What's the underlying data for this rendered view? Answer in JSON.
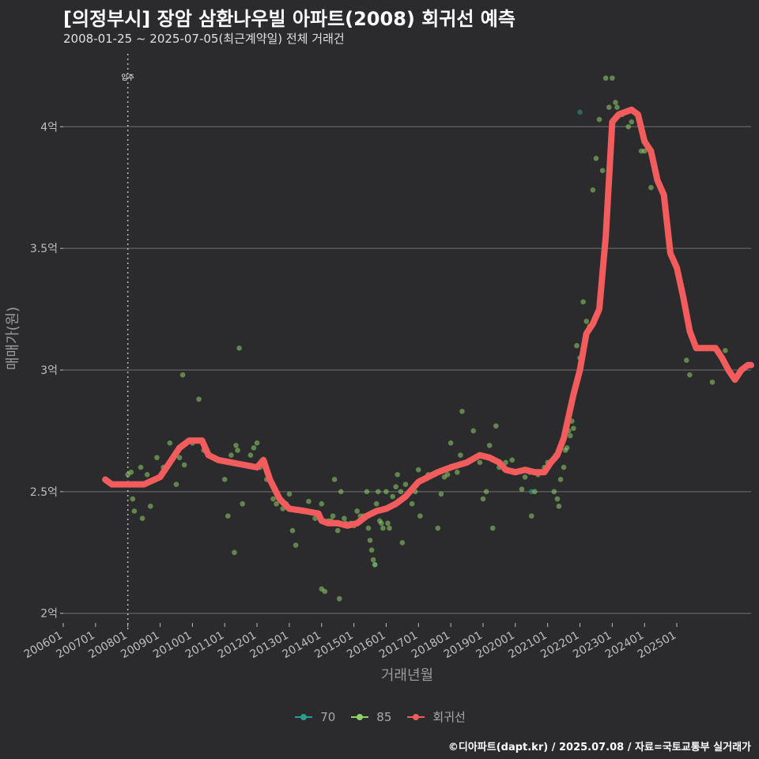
{
  "header": {
    "title": "[의정부시] 장암 삼환나우빌 아파트(2008) 회귀선 예측",
    "subtitle": "2008-01-25 ~ 2025-07-05(최근계약일) 전체 거래건"
  },
  "footer": {
    "credit": "©디아파트(dapt.kr) / 2025.07.08 / 자료=국토교통부 실거래가"
  },
  "colors": {
    "s70": "#2a9d8f",
    "s85": "#8fd16a",
    "regression": "#f25c5c"
  },
  "chart_data": {
    "type": "scatter",
    "title": "[의정부시] 장암 삼환나우빌 아파트(2008) 회귀선 예측",
    "xlabel": "거래년월",
    "ylabel": "매매가(원)",
    "xlim": [
      2006.0,
      2027.3
    ],
    "ylim": [
      1.96,
      4.3
    ],
    "y_ticks": [
      {
        "value": 2.0,
        "label": "2억"
      },
      {
        "value": 2.5,
        "label": "2.5억"
      },
      {
        "value": 3.0,
        "label": "3억"
      },
      {
        "value": 3.5,
        "label": "3.5억"
      },
      {
        "value": 4.0,
        "label": "4억"
      }
    ],
    "x_ticks": [
      "200601",
      "200701",
      "200801",
      "200901",
      "201001",
      "201101",
      "201201",
      "201301",
      "201401",
      "201501",
      "201601",
      "201701",
      "201801",
      "201901",
      "202001",
      "202101",
      "202201",
      "202301",
      "202401",
      "202501"
    ],
    "annotation": {
      "label": "입주",
      "x": 2008.0
    },
    "legend": [
      "70",
      "85",
      "회귀선"
    ],
    "series": [
      {
        "name": "70",
        "points": [
          [
            2022.0,
            4.06
          ],
          [
            2015.65,
            2.2
          ],
          [
            2020.5,
            2.5
          ]
        ]
      },
      {
        "name": "85",
        "points": [
          [
            2008.0,
            2.57
          ],
          [
            2008.1,
            2.58
          ],
          [
            2008.15,
            2.47
          ],
          [
            2008.2,
            2.42
          ],
          [
            2008.4,
            2.6
          ],
          [
            2008.45,
            2.39
          ],
          [
            2008.6,
            2.57
          ],
          [
            2008.7,
            2.44
          ],
          [
            2008.8,
            2.55
          ],
          [
            2008.9,
            2.64
          ],
          [
            2009.1,
            2.6
          ],
          [
            2009.3,
            2.7
          ],
          [
            2009.5,
            2.53
          ],
          [
            2009.6,
            2.64
          ],
          [
            2009.7,
            2.98
          ],
          [
            2009.75,
            2.61
          ],
          [
            2010.0,
            2.7
          ],
          [
            2010.2,
            2.88
          ],
          [
            2010.35,
            2.67
          ],
          [
            2010.5,
            2.65
          ],
          [
            2010.7,
            2.64
          ],
          [
            2010.8,
            2.63
          ],
          [
            2011.0,
            2.55
          ],
          [
            2011.1,
            2.4
          ],
          [
            2011.2,
            2.65
          ],
          [
            2011.3,
            2.25
          ],
          [
            2011.35,
            2.69
          ],
          [
            2011.4,
            2.67
          ],
          [
            2011.45,
            3.09
          ],
          [
            2011.55,
            2.45
          ],
          [
            2011.8,
            2.65
          ],
          [
            2011.9,
            2.68
          ],
          [
            2012.0,
            2.7
          ],
          [
            2012.1,
            2.6
          ],
          [
            2012.3,
            2.55
          ],
          [
            2012.5,
            2.47
          ],
          [
            2012.6,
            2.45
          ],
          [
            2012.8,
            2.43
          ],
          [
            2012.9,
            2.45
          ],
          [
            2013.0,
            2.49
          ],
          [
            2013.1,
            2.34
          ],
          [
            2013.2,
            2.28
          ],
          [
            2013.4,
            2.42
          ],
          [
            2013.6,
            2.46
          ],
          [
            2013.8,
            2.39
          ],
          [
            2014.0,
            2.45
          ],
          [
            2014.2,
            2.38
          ],
          [
            2014.3,
            2.38
          ],
          [
            2014.35,
            2.4
          ],
          [
            2014.4,
            2.55
          ],
          [
            2014.5,
            2.34
          ],
          [
            2014.55,
            2.06
          ],
          [
            2014.6,
            2.5
          ],
          [
            2014.7,
            2.39
          ],
          [
            2014.75,
            2.37
          ],
          [
            2014.9,
            2.37
          ],
          [
            2015.0,
            2.36
          ],
          [
            2015.1,
            2.42
          ],
          [
            2015.2,
            2.4
          ],
          [
            2015.3,
            2.4
          ],
          [
            2015.4,
            2.5
          ],
          [
            2015.45,
            2.35
          ],
          [
            2015.5,
            2.3
          ],
          [
            2015.55,
            2.26
          ],
          [
            2015.6,
            2.22
          ],
          [
            2015.65,
            2.2
          ],
          [
            2015.7,
            2.45
          ],
          [
            2015.75,
            2.5
          ],
          [
            2015.8,
            2.38
          ],
          [
            2015.85,
            2.37
          ],
          [
            2015.9,
            2.35
          ],
          [
            2016.0,
            2.5
          ],
          [
            2016.05,
            2.37
          ],
          [
            2016.1,
            2.35
          ],
          [
            2016.2,
            2.48
          ],
          [
            2016.3,
            2.52
          ],
          [
            2016.35,
            2.57
          ],
          [
            2016.45,
            2.5
          ],
          [
            2016.5,
            2.29
          ],
          [
            2016.6,
            2.53
          ],
          [
            2016.8,
            2.45
          ],
          [
            2016.9,
            2.5
          ],
          [
            2017.0,
            2.59
          ],
          [
            2017.05,
            2.4
          ],
          [
            2017.3,
            2.57
          ],
          [
            2017.5,
            2.57
          ],
          [
            2017.6,
            2.35
          ],
          [
            2017.7,
            2.49
          ],
          [
            2017.8,
            2.56
          ],
          [
            2017.9,
            2.57
          ],
          [
            2018.0,
            2.7
          ],
          [
            2018.2,
            2.58
          ],
          [
            2018.3,
            2.65
          ],
          [
            2018.35,
            2.83
          ],
          [
            2018.7,
            2.75
          ],
          [
            2018.9,
            2.62
          ],
          [
            2019.0,
            2.47
          ],
          [
            2019.1,
            2.5
          ],
          [
            2019.2,
            2.69
          ],
          [
            2019.3,
            2.35
          ],
          [
            2019.4,
            2.77
          ],
          [
            2019.5,
            2.6
          ],
          [
            2019.7,
            2.62
          ],
          [
            2019.9,
            2.63
          ],
          [
            2020.2,
            2.51
          ],
          [
            2020.3,
            2.56
          ],
          [
            2020.45,
            2.58
          ],
          [
            2020.5,
            2.4
          ],
          [
            2020.6,
            2.5
          ],
          [
            2020.7,
            2.57
          ],
          [
            2020.9,
            2.6
          ],
          [
            2021.0,
            2.62
          ],
          [
            2021.2,
            2.5
          ],
          [
            2021.25,
            2.65
          ],
          [
            2021.3,
            2.47
          ],
          [
            2021.35,
            2.44
          ],
          [
            2021.4,
            2.55
          ],
          [
            2021.5,
            2.6
          ],
          [
            2021.55,
            2.67
          ],
          [
            2021.6,
            2.68
          ],
          [
            2021.65,
            2.75
          ],
          [
            2021.7,
            2.73
          ],
          [
            2021.75,
            2.79
          ],
          [
            2021.8,
            2.76
          ],
          [
            2021.9,
            3.1
          ],
          [
            2022.0,
            3.05
          ],
          [
            2022.1,
            3.28
          ],
          [
            2022.2,
            3.2
          ],
          [
            2022.3,
            3.18
          ],
          [
            2022.4,
            3.74
          ],
          [
            2022.5,
            3.87
          ],
          [
            2022.6,
            4.03
          ],
          [
            2022.7,
            3.82
          ],
          [
            2022.8,
            4.2
          ],
          [
            2022.9,
            4.08
          ],
          [
            2023.0,
            4.2
          ],
          [
            2023.1,
            4.1
          ],
          [
            2023.15,
            4.08
          ],
          [
            2023.3,
            4.05
          ],
          [
            2023.5,
            4.0
          ],
          [
            2023.6,
            4.02
          ],
          [
            2023.9,
            3.9
          ],
          [
            2024.0,
            3.9
          ],
          [
            2024.2,
            3.75
          ],
          [
            2025.3,
            3.04
          ],
          [
            2025.4,
            2.98
          ],
          [
            2026.1,
            2.95
          ],
          [
            2026.5,
            3.08
          ],
          [
            2014.0,
            2.1
          ],
          [
            2014.1,
            2.09
          ]
        ]
      },
      {
        "name": "회귀선",
        "points": [
          [
            2007.3,
            2.55
          ],
          [
            2007.5,
            2.53
          ],
          [
            2008.0,
            2.53
          ],
          [
            2008.5,
            2.53
          ],
          [
            2009.0,
            2.56
          ],
          [
            2009.3,
            2.62
          ],
          [
            2009.6,
            2.68
          ],
          [
            2009.9,
            2.71
          ],
          [
            2010.3,
            2.71
          ],
          [
            2010.5,
            2.65
          ],
          [
            2010.8,
            2.63
          ],
          [
            2011.2,
            2.62
          ],
          [
            2011.6,
            2.61
          ],
          [
            2012.0,
            2.6
          ],
          [
            2012.2,
            2.63
          ],
          [
            2012.4,
            2.55
          ],
          [
            2012.7,
            2.47
          ],
          [
            2013.0,
            2.43
          ],
          [
            2013.5,
            2.42
          ],
          [
            2013.9,
            2.41
          ],
          [
            2014.0,
            2.38
          ],
          [
            2014.2,
            2.37
          ],
          [
            2014.5,
            2.37
          ],
          [
            2014.8,
            2.36
          ],
          [
            2015.1,
            2.37
          ],
          [
            2015.4,
            2.4
          ],
          [
            2015.7,
            2.42
          ],
          [
            2016.0,
            2.43
          ],
          [
            2016.3,
            2.45
          ],
          [
            2016.6,
            2.48
          ],
          [
            2017.0,
            2.54
          ],
          [
            2017.3,
            2.56
          ],
          [
            2017.6,
            2.58
          ],
          [
            2018.0,
            2.6
          ],
          [
            2018.5,
            2.62
          ],
          [
            2018.9,
            2.65
          ],
          [
            2019.2,
            2.64
          ],
          [
            2019.5,
            2.62
          ],
          [
            2019.7,
            2.59
          ],
          [
            2020.0,
            2.58
          ],
          [
            2020.3,
            2.59
          ],
          [
            2020.6,
            2.58
          ],
          [
            2020.9,
            2.58
          ],
          [
            2021.1,
            2.62
          ],
          [
            2021.3,
            2.65
          ],
          [
            2021.5,
            2.72
          ],
          [
            2021.8,
            2.9
          ],
          [
            2022.0,
            3.0
          ],
          [
            2022.2,
            3.15
          ],
          [
            2022.4,
            3.19
          ],
          [
            2022.6,
            3.25
          ],
          [
            2022.8,
            3.55
          ],
          [
            2023.0,
            4.02
          ],
          [
            2023.2,
            4.05
          ],
          [
            2023.4,
            4.06
          ],
          [
            2023.6,
            4.07
          ],
          [
            2023.8,
            4.05
          ],
          [
            2024.0,
            3.94
          ],
          [
            2024.2,
            3.9
          ],
          [
            2024.4,
            3.78
          ],
          [
            2024.6,
            3.72
          ],
          [
            2024.8,
            3.48
          ],
          [
            2025.0,
            3.42
          ],
          [
            2025.2,
            3.3
          ],
          [
            2025.4,
            3.16
          ],
          [
            2025.6,
            3.09
          ],
          [
            2025.9,
            3.09
          ],
          [
            2026.2,
            3.09
          ],
          [
            2026.4,
            3.05
          ],
          [
            2026.6,
            3.0
          ],
          [
            2026.8,
            2.96
          ],
          [
            2027.0,
            3.0
          ],
          [
            2027.2,
            3.02
          ],
          [
            2027.3,
            3.02
          ]
        ]
      }
    ]
  }
}
